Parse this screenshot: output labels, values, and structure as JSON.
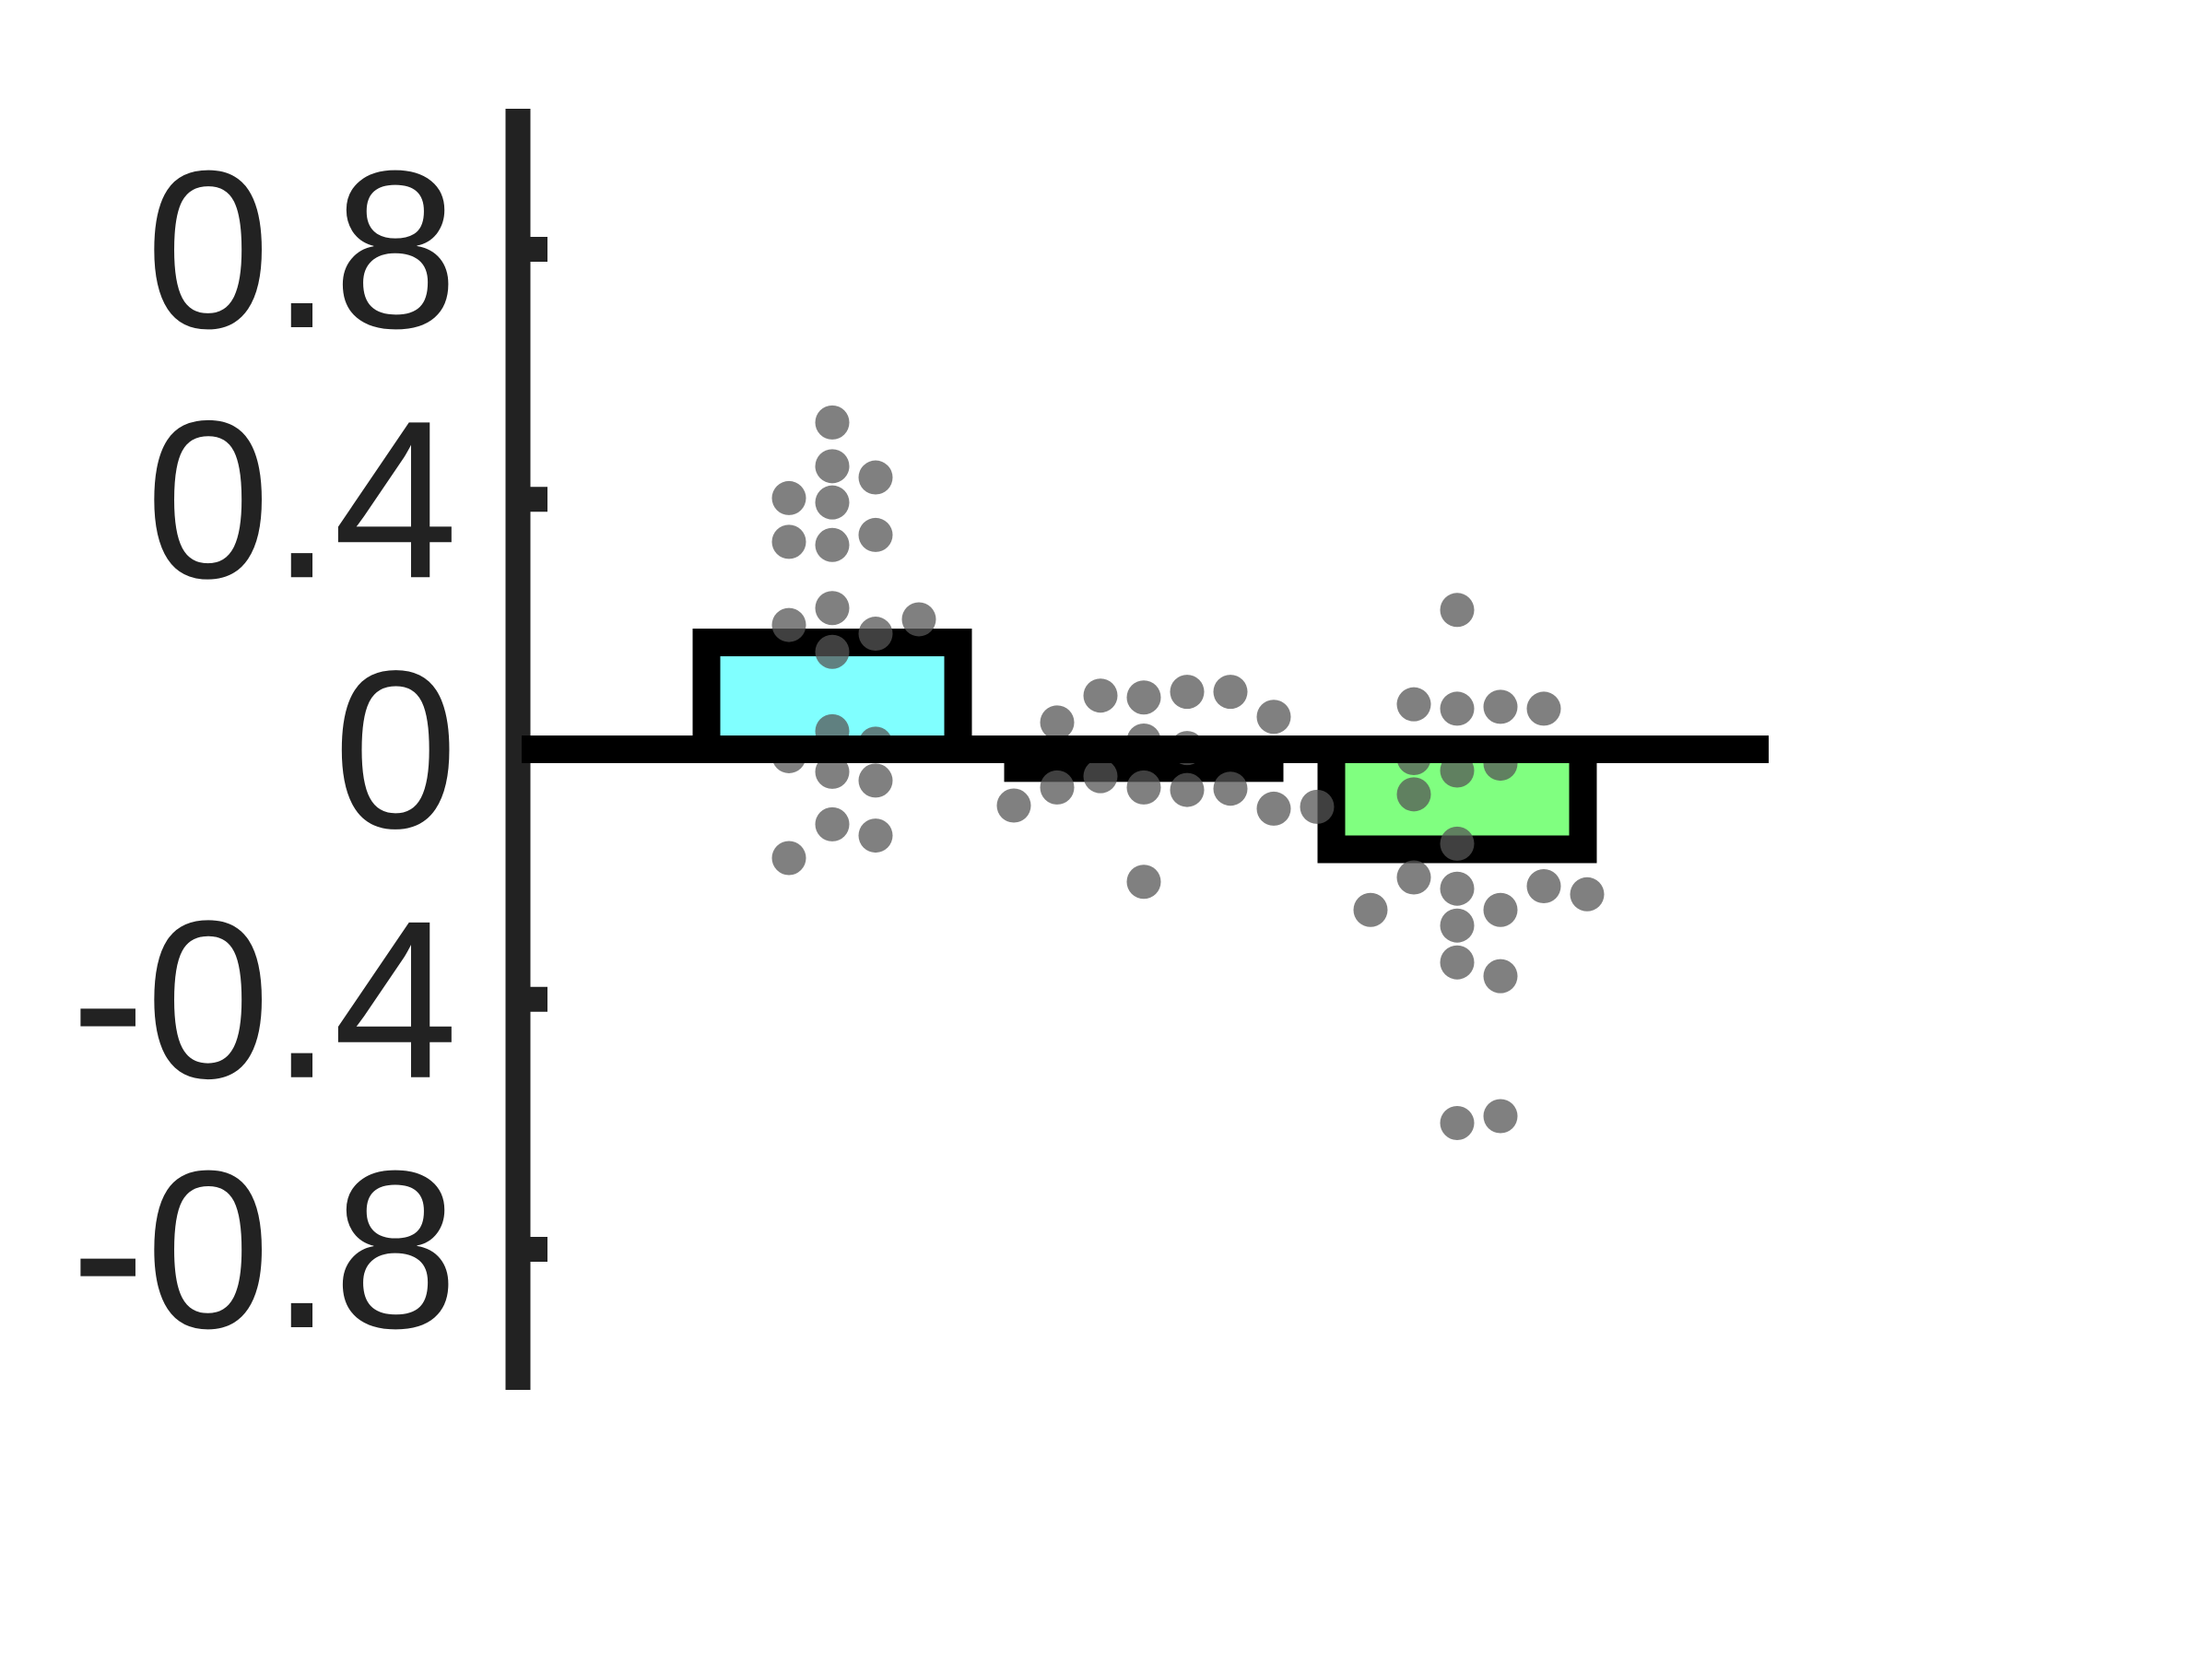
{
  "chart_data": {
    "type": "bar",
    "categories": [
      null,
      null,
      null
    ],
    "values": [
      0.171,
      -0.03,
      -0.16
    ],
    "colors": [
      "#80ffff",
      "#808080",
      "#80ff80"
    ],
    "points": [
      [
        0.523,
        0.453,
        0.435,
        0.395,
        0.402,
        0.343,
        0.327,
        0.332,
        0.226,
        0.185,
        0.199,
        0.208,
        0.156,
        0.029,
        0.009,
        -0.011,
        -0.036,
        -0.05,
        -0.12,
        -0.138,
        -0.174
      ],
      [
        0.083,
        0.092,
        0.086,
        0.092,
        0.043,
        0.052,
        0.014,
        0.002,
        -0.061,
        -0.043,
        -0.065,
        -0.063,
        -0.061,
        -0.095,
        -0.09,
        -0.092,
        -0.212
      ],
      [
        0.223,
        0.065,
        0.068,
        0.072,
        0.065,
        -0.034,
        -0.023,
        -0.014,
        -0.072,
        -0.151,
        -0.223,
        -0.257,
        -0.205,
        -0.219,
        -0.282,
        -0.257,
        -0.232,
        -0.341,
        -0.363,
        -0.598,
        -0.587
      ]
    ],
    "point_color": "#555555",
    "ylim": [
      -1.025,
      1.025
    ],
    "yticks": [
      -0.8,
      -0.4,
      0,
      0.4,
      0.8
    ]
  }
}
